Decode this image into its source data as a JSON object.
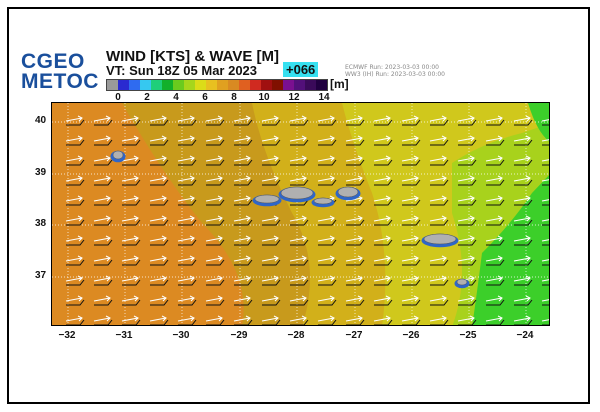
{
  "logo": {
    "line1": "CGEO",
    "line2": "METOC"
  },
  "header": {
    "title": "WIND [KTS] & WAVE [M]",
    "valid_time": "VT: Sun 18Z 05 Mar 2023",
    "forecast_hour": "+066",
    "model_wind": "ECMWF   Run: 2023-03-03 00:00",
    "model_wave": "WW3 (IH) Run: 2023-03-03 00:00"
  },
  "legend": {
    "unit": "[m]",
    "tick_labels": [
      "0",
      "2",
      "4",
      "6",
      "8",
      "10",
      "12",
      "14"
    ],
    "colors": [
      "#9a9a9a",
      "#2a2ad0",
      "#2f6bf0",
      "#36c8f0",
      "#1fcf7a",
      "#12b02a",
      "#6acb1e",
      "#a6d61c",
      "#dcdc18",
      "#e8c020",
      "#e0a020",
      "#d98a22",
      "#e06020",
      "#d02a20",
      "#a01010",
      "#801000",
      "#7a1090",
      "#52107a",
      "#3a0a5a",
      "#200040"
    ]
  },
  "map": {
    "lat_labels": [
      "40",
      "39",
      "38",
      "37"
    ],
    "lon_labels": [
      "−32",
      "−31",
      "−30",
      "−29",
      "−28",
      "−27",
      "−26",
      "−25",
      "−24"
    ],
    "colors": {
      "orange": "#dc8a22",
      "ochre": "#c89a1c",
      "yellow": "#d0c81c",
      "lime": "#a8d21c",
      "green": "#3ccf2a",
      "island": "#b0b0b0",
      "coast": "#2f66c8",
      "arrow": "#ffffff",
      "barb": "#111111"
    }
  }
}
